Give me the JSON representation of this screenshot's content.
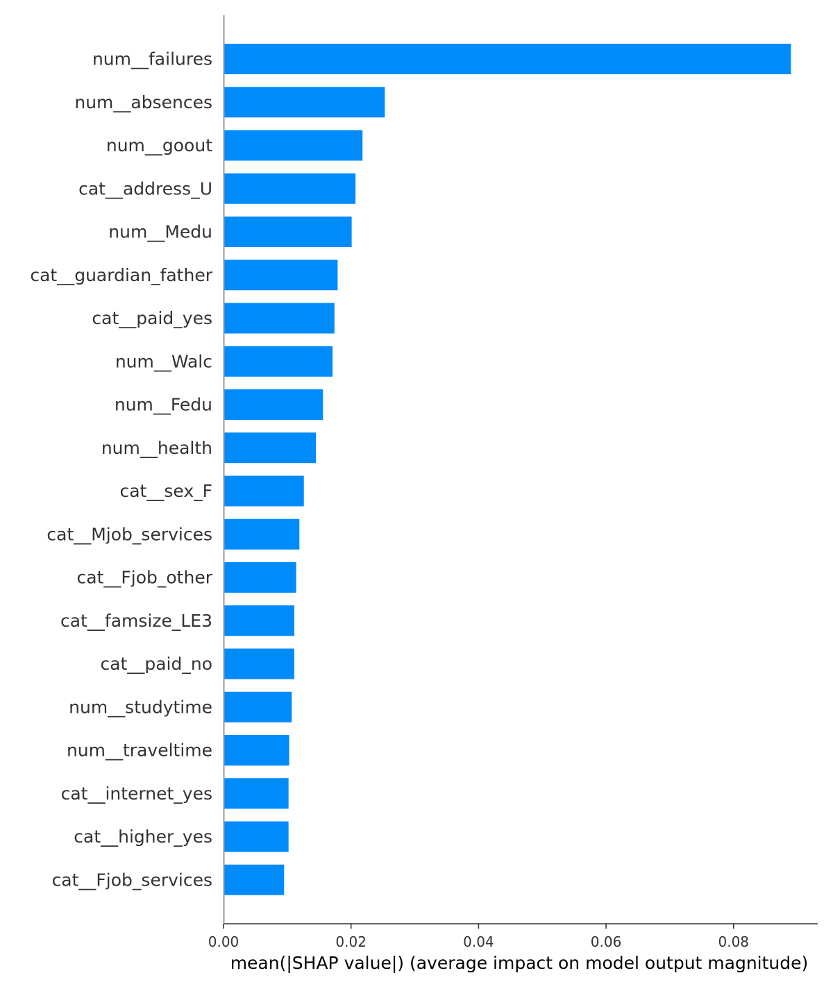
{
  "chart_data": {
    "type": "bar",
    "orientation": "horizontal",
    "categories": [
      "num__failures",
      "num__absences",
      "num__goout",
      "cat__address_U",
      "num__Medu",
      "cat__guardian_father",
      "cat__paid_yes",
      "num__Walc",
      "num__Fedu",
      "num__health",
      "cat__sex_F",
      "cat__Mjob_services",
      "cat__Fjob_other",
      "cat__famsize_LE3",
      "cat__paid_no",
      "num__studytime",
      "num__traveltime",
      "cat__internet_yes",
      "cat__higher_yes",
      "cat__Fjob_services"
    ],
    "values": [
      0.089,
      0.0253,
      0.0218,
      0.0207,
      0.0201,
      0.0179,
      0.0174,
      0.0171,
      0.0156,
      0.0145,
      0.0126,
      0.0119,
      0.0114,
      0.0111,
      0.0111,
      0.0107,
      0.0103,
      0.0102,
      0.0102,
      0.0095
    ],
    "xticks": [
      0.0,
      0.02,
      0.04,
      0.06,
      0.08
    ],
    "xtick_labels": [
      "0.00",
      "0.02",
      "0.04",
      "0.06",
      "0.08"
    ],
    "xlim": [
      0,
      0.0932
    ],
    "xlabel": "mean(|SHAP value|) (average impact on model output magnitude)",
    "grid": false,
    "legend": "none",
    "colors": {
      "bar": "#008bfb",
      "axis": "#333333",
      "zero_line": "#999999"
    }
  }
}
